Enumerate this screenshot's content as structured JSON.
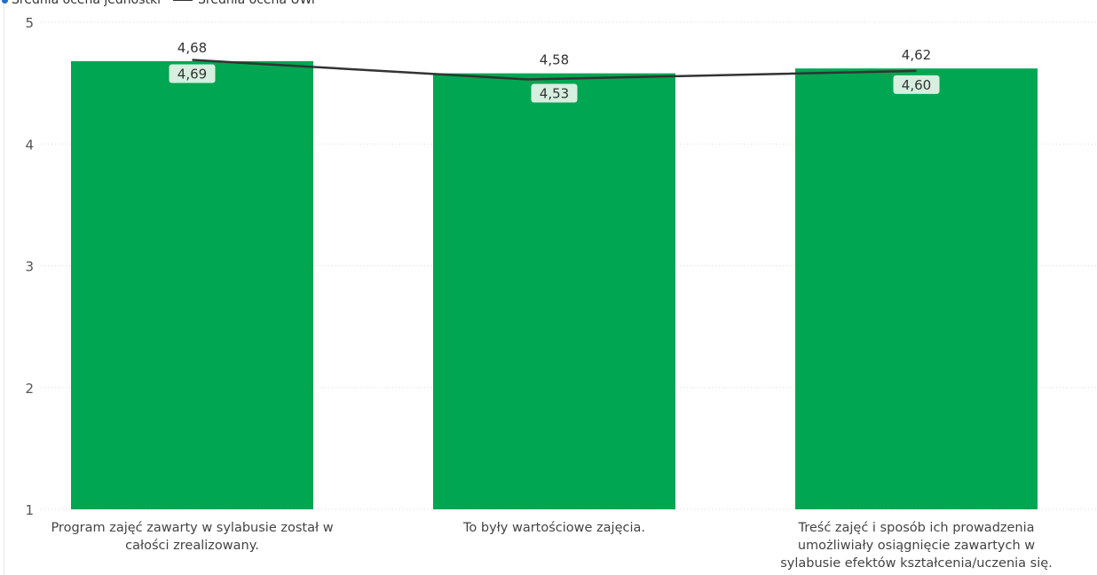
{
  "chart_data": {
    "type": "bar",
    "categories": [
      "Program zajęć zawarty w sylabusie został w całości zrealizowany.",
      "To były wartościowe zajęcia.",
      "Treść zajęć i sposób ich prowadzenia umożliwiały osiągnięcie zawartych w sylabusie efektów kształcenia/uczenia się."
    ],
    "series": [
      {
        "name": "Średnia ocena jednostki",
        "kind": "bar",
        "color": "#00A651",
        "values": [
          4.68,
          4.58,
          4.62
        ],
        "labels": [
          "4,68",
          "4,58",
          "4,62"
        ]
      },
      {
        "name": "Średnia ocena UWr",
        "kind": "line",
        "color": "#333333",
        "values": [
          4.69,
          4.53,
          4.6
        ],
        "labels": [
          "4,69",
          "4,53",
          "4,60"
        ]
      }
    ],
    "ylim": [
      1,
      5
    ],
    "yticks": [
      "1",
      "2",
      "3",
      "4",
      "5"
    ],
    "grid": true,
    "legend_position": "top-left"
  }
}
